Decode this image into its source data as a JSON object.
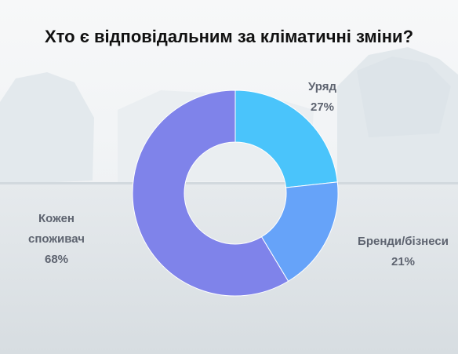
{
  "chart_data": {
    "type": "pie",
    "donut": true,
    "title": "Хто є відповідальним за кліматичні зміни?",
    "slices": [
      {
        "label": "Уряд",
        "value": 27,
        "value_label": "27%",
        "color": "#4ac4fb"
      },
      {
        "label": "Бренди/бізнеси",
        "value": 21,
        "value_label": "21%",
        "color": "#66a3f9"
      },
      {
        "label": "Кожен споживач",
        "value": 68,
        "value_label": "68%",
        "color": "#7f83ea"
      }
    ]
  }
}
